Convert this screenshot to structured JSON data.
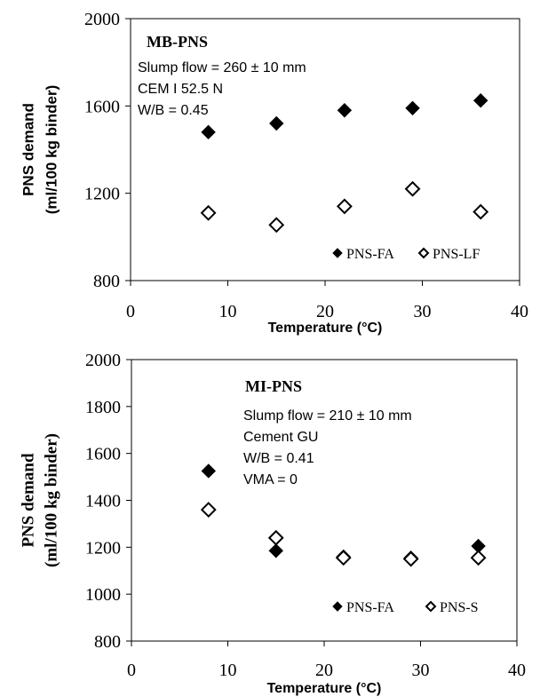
{
  "chart_data": [
    {
      "type": "scatter",
      "panel_title": "MB-PNS",
      "annotations": [
        "Slump flow = 260 ± 10 mm",
        "CEM I 52.5 N",
        "W/B = 0.45"
      ],
      "xlabel": "Temperature (°C)",
      "ylabel_lines": [
        "PNS demand",
        "(ml/100 kg binder)"
      ],
      "xlim": [
        0,
        40
      ],
      "ylim": [
        800,
        2000
      ],
      "xticks": [
        0,
        10,
        20,
        30,
        40
      ],
      "yticks": [
        800,
        1200,
        1600,
        2000
      ],
      "legend_position": "bottom-right",
      "series": [
        {
          "name": "PNS-FA",
          "marker": "filled-diamond",
          "x": [
            8,
            15,
            22,
            29,
            36
          ],
          "y": [
            1480,
            1520,
            1580,
            1590,
            1625
          ]
        },
        {
          "name": "PNS-LF",
          "marker": "open-diamond",
          "x": [
            8,
            15,
            22,
            29,
            36
          ],
          "y": [
            1110,
            1055,
            1140,
            1220,
            1115
          ]
        }
      ]
    },
    {
      "type": "scatter",
      "panel_title": "MI-PNS",
      "annotations": [
        "Slump flow = 210 ± 10 mm",
        "Cement GU",
        "W/B = 0.41",
        "VMA = 0"
      ],
      "xlabel": "Temperature (°C)",
      "ylabel_lines": [
        "PNS demand",
        "(ml/100 kg binder)"
      ],
      "xlim": [
        0,
        40
      ],
      "ylim": [
        800,
        2000
      ],
      "xticks": [
        0,
        10,
        20,
        30,
        40
      ],
      "yticks": [
        800,
        1000,
        1200,
        1400,
        1600,
        1800,
        2000
      ],
      "legend_position": "bottom-right",
      "series": [
        {
          "name": "PNS-FA",
          "marker": "filled-diamond",
          "x": [
            8,
            15,
            22,
            29,
            36
          ],
          "y": [
            1525,
            1185,
            1160,
            1155,
            1205
          ]
        },
        {
          "name": "PNS-S",
          "marker": "open-diamond",
          "x": [
            8,
            15,
            22,
            29,
            36
          ],
          "y": [
            1360,
            1240,
            1155,
            1150,
            1155
          ]
        }
      ]
    }
  ]
}
